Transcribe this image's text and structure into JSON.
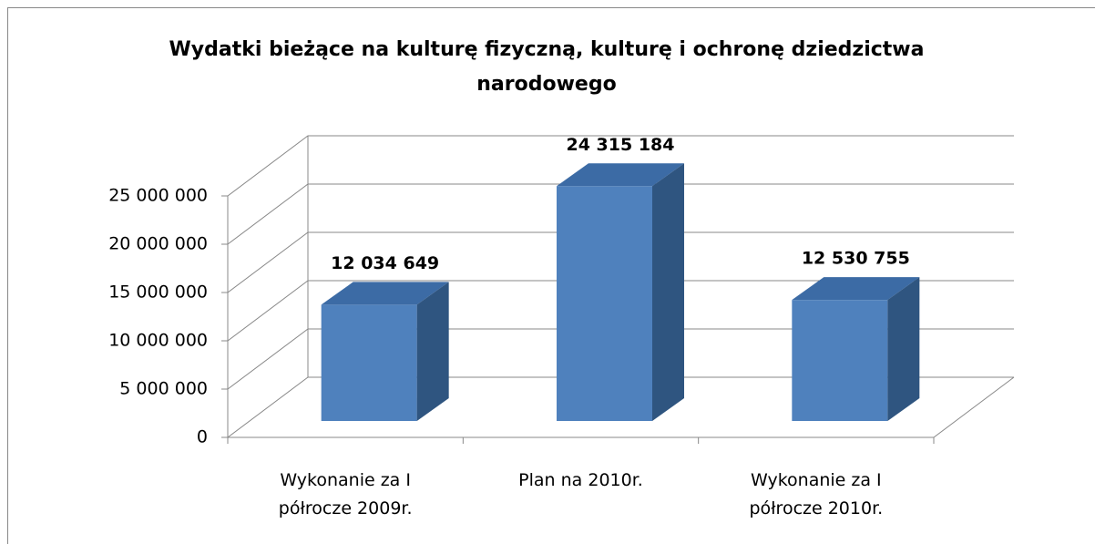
{
  "chart_data": {
    "type": "bar3d",
    "title": "Wydatki bieżące na kulturę fizyczną, kulturę i ochronę dziedzictwa narodowego",
    "categories": [
      "Wykonanie za I półrocze 2009r.",
      "Plan na 2010r.",
      "Wykonanie za I półrocze 2010r."
    ],
    "values": [
      12034649,
      24315184,
      12530755
    ],
    "value_labels": [
      "12 034 649",
      "24 315 184",
      "12 530 755"
    ],
    "color": "#4f81bd",
    "ylim": [
      0,
      25000000
    ],
    "yticks": [
      0,
      {
        "value": 5000000,
        "label": "5 000 000"
      },
      {
        "value": 10000000,
        "label": "10 000 000"
      },
      {
        "value": 15000000,
        "label": "15 000 000"
      },
      {
        "value": 20000000,
        "label": "20 000 000"
      },
      {
        "value": 25000000,
        "label": "25 000 000"
      }
    ],
    "grid": true
  }
}
